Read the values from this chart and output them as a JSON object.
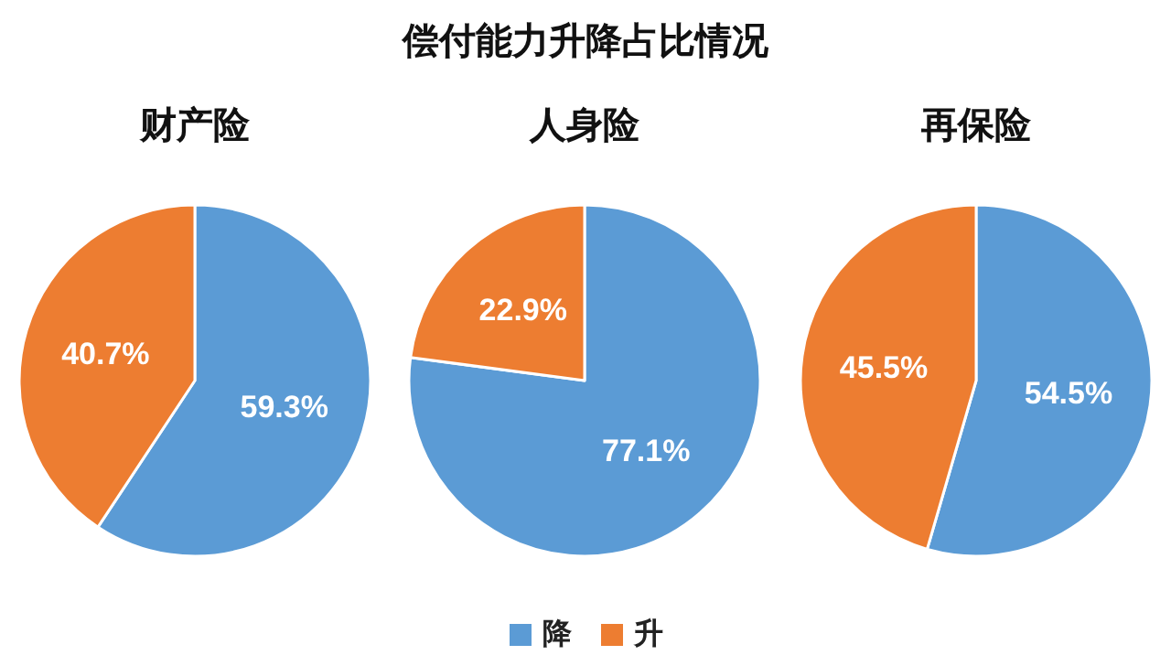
{
  "chart_data": [
    {
      "type": "other",
      "title": "偿付能力升降占比情况"
    },
    {
      "type": "pie",
      "title": "财产险",
      "categories": [
        null,
        null
      ],
      "values": [
        59.3,
        40.7
      ],
      "colors": [
        "#5b9bd5",
        "#ed7d31"
      ],
      "value_labels": [
        "59.3%",
        "40.7%"
      ]
    },
    {
      "type": "pie",
      "title": "人身险",
      "categories": [
        "降",
        "升"
      ],
      "values": [
        77.1,
        22.9
      ],
      "colors": [
        "#5b9bd5",
        "#ed7d31"
      ],
      "value_labels": [
        "77.1%",
        "22.9%"
      ],
      "legend": "bottom"
    },
    {
      "type": "pie",
      "title": "再保险",
      "categories": [
        null,
        null
      ],
      "values": [
        54.5,
        45.5
      ],
      "colors": [
        "#5b9bd5",
        "#ed7d31"
      ],
      "value_labels": [
        "54.5%",
        "45.5%"
      ]
    }
  ]
}
